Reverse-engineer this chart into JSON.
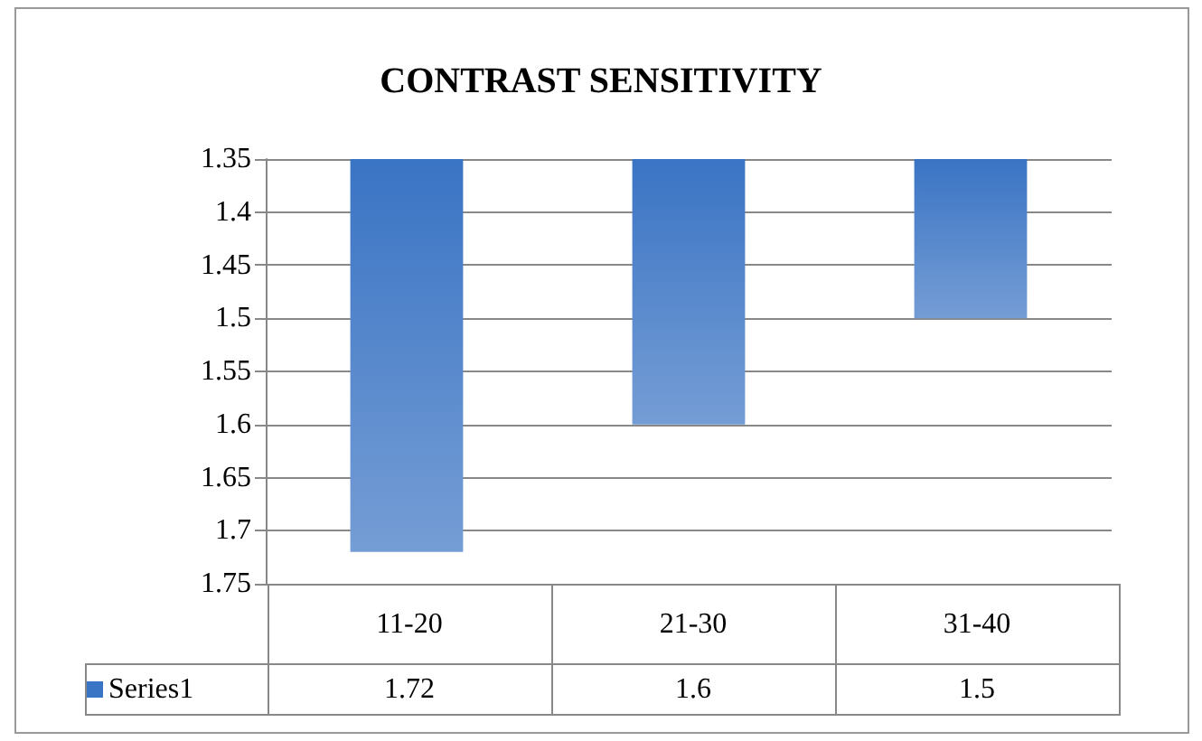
{
  "chart_data": {
    "type": "bar",
    "title": "CONTRAST SENSITIVITY",
    "categories": [
      "11-20",
      "21-30",
      "31-40"
    ],
    "series": [
      {
        "name": "Series1",
        "color": "#3a74c4",
        "values": [
          1.72,
          1.6,
          1.5
        ]
      }
    ],
    "ylim": [
      1.75,
      1.35
    ],
    "yticks": [
      1.35,
      1.4,
      1.45,
      1.5,
      1.55,
      1.6,
      1.65,
      1.7,
      1.75
    ],
    "grid": "y",
    "legend": "bottom",
    "data_labels": true
  }
}
